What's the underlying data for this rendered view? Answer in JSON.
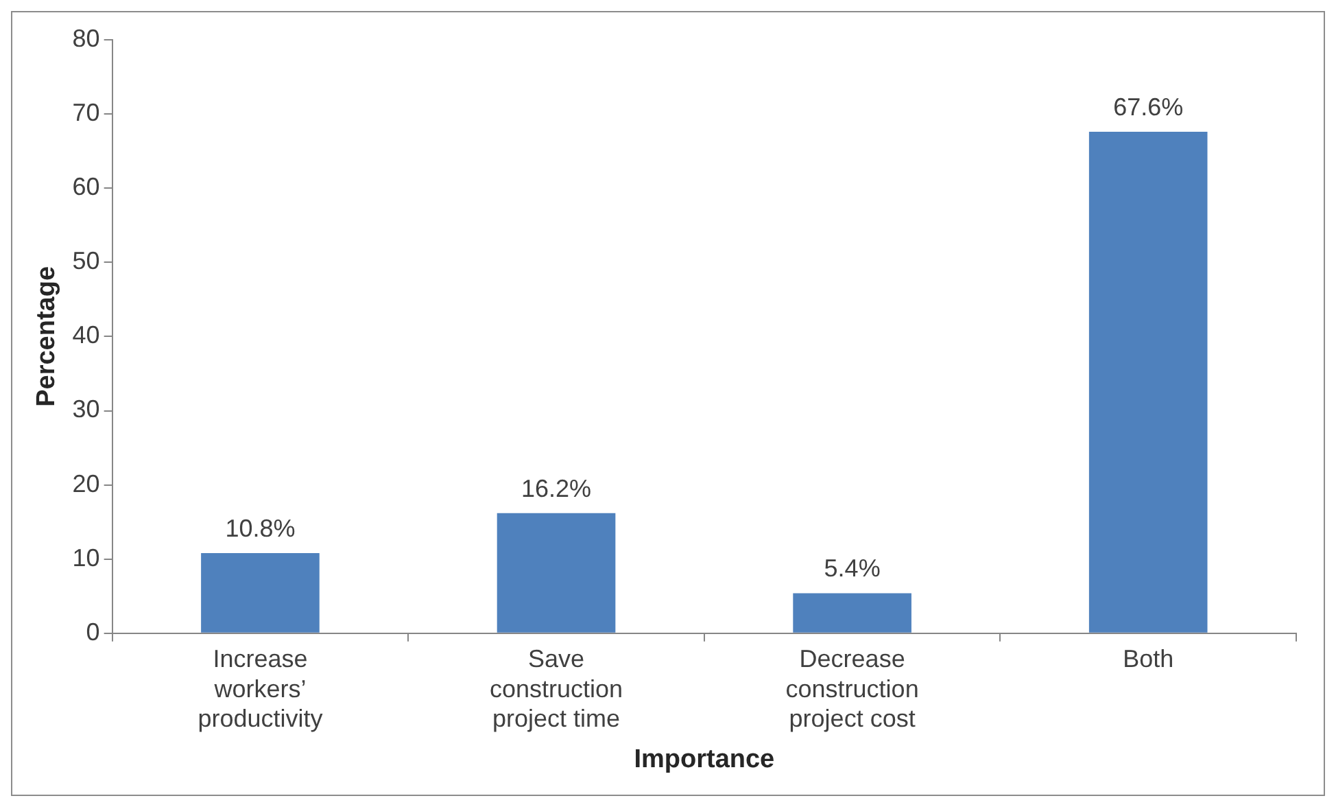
{
  "chart_data": {
    "type": "bar",
    "xlabel": "Importance",
    "ylabel": "Percentage",
    "categories": [
      "Increase workers’ productivity",
      "Save construction project time",
      "Decrease construction project cost",
      "Both"
    ],
    "values": [
      10.8,
      16.2,
      5.4,
      67.6
    ],
    "value_labels": [
      "10.8%",
      "16.2%",
      "5.4%",
      "67.6%"
    ],
    "color": "#4f81bd",
    "ylim": [
      0,
      80
    ],
    "yticks": [
      0,
      10,
      20,
      30,
      40,
      50,
      60,
      70,
      80
    ],
    "grid": false,
    "legend": false
  }
}
